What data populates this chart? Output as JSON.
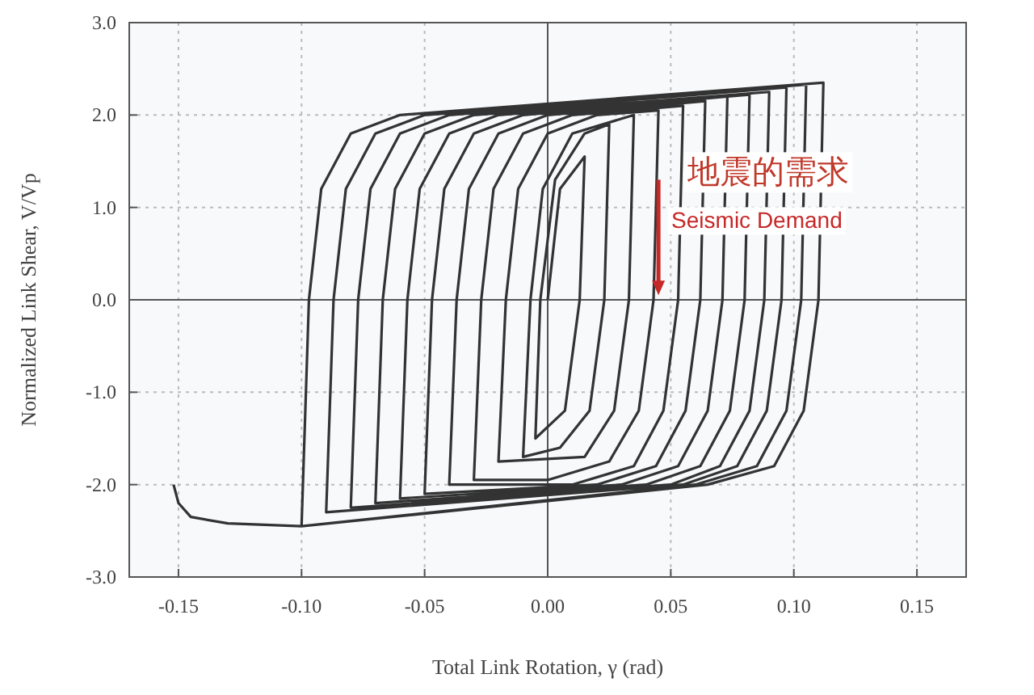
{
  "chart_data": {
    "type": "line",
    "xlabel": "Total Link Rotation, γ (rad)",
    "ylabel": "Normalized Link Shear, V/Vp",
    "xlim": [
      -0.17,
      0.17
    ],
    "xticks": [
      {
        "value": -0.15,
        "label": "-0.15"
      },
      {
        "value": -0.1,
        "label": "-0.10"
      },
      {
        "value": -0.05,
        "label": "-0.05"
      },
      {
        "value": 0,
        "label": "0.00"
      },
      {
        "value": 0.05,
        "label": "0.05"
      },
      {
        "value": 0.1,
        "label": "0.10"
      },
      {
        "value": 0.15,
        "label": "0.15"
      }
    ],
    "ylim": [
      -3,
      3
    ],
    "yticks": [
      {
        "value": -3,
        "label": "-3.0"
      },
      {
        "value": -2,
        "label": "-2.0"
      },
      {
        "value": -1,
        "label": "-1.0"
      },
      {
        "value": 0,
        "label": "0.0"
      },
      {
        "value": 1,
        "label": "1.0"
      },
      {
        "value": 2,
        "label": "2.0"
      },
      {
        "value": 3,
        "label": "3.0"
      }
    ],
    "grid": true,
    "marker": "none",
    "line_style": "solid",
    "annotations": [
      {
        "text": "地震的需求",
        "x": 0.045,
        "y": 1.3
      },
      {
        "text": "Seismic Demand",
        "x": 0.045,
        "y": 0.05
      }
    ],
    "series": [
      {
        "color": "#333333",
        "x": [
          0,
          0.005,
          0.015,
          0.013,
          0.007,
          -0.005,
          -0.003,
          0.003,
          0.015,
          0.025,
          0.023,
          0.017,
          0.005,
          -0.01,
          -0.007,
          -0.002,
          0.01,
          0.035,
          0.033,
          0.027,
          0.015,
          -0.02,
          -0.017,
          -0.012,
          0.0,
          0.02,
          0.045,
          0.043,
          0.037,
          0.025,
          0.0,
          -0.03,
          -0.027,
          -0.022,
          -0.01,
          0.01,
          0.055,
          0.053,
          0.047,
          0.035,
          0.01,
          -0.04,
          -0.037,
          -0.032,
          -0.02,
          0.0,
          0.064,
          0.062,
          0.056,
          0.044,
          0.02,
          -0.05,
          -0.047,
          -0.042,
          -0.03,
          -0.01,
          0.073,
          0.071,
          0.065,
          0.053,
          0.03,
          -0.06,
          -0.057,
          -0.052,
          -0.04,
          -0.02,
          0.082,
          0.08,
          0.074,
          0.062,
          0.04,
          -0.07,
          -0.067,
          -0.062,
          -0.05,
          -0.03,
          0.09,
          0.088,
          0.082,
          0.07,
          0.05,
          -0.08,
          -0.077,
          -0.072,
          -0.06,
          -0.04,
          0.097,
          0.095,
          0.089,
          0.077,
          0.055,
          -0.09,
          -0.087,
          -0.082,
          -0.07,
          -0.05,
          0.105,
          0.103,
          0.097,
          0.085,
          0.06,
          -0.1,
          -0.097,
          -0.092,
          -0.08,
          -0.06,
          0.112,
          0.11,
          0.104,
          0.092,
          0.065,
          -0.1,
          -0.13,
          -0.145,
          -0.15,
          -0.152
        ],
        "values": [
          0,
          1.2,
          1.55,
          0,
          -1.2,
          -1.5,
          0,
          1.3,
          1.8,
          1.9,
          0,
          -1.2,
          -1.6,
          -1.7,
          0,
          1.2,
          1.8,
          2.0,
          0,
          -1.2,
          -1.7,
          -1.75,
          0,
          1.2,
          1.8,
          2.0,
          2.05,
          0,
          -1.2,
          -1.75,
          -1.95,
          -1.95,
          0,
          1.2,
          1.8,
          2.0,
          2.1,
          0,
          -1.2,
          -1.8,
          -2.0,
          -2.0,
          0,
          1.2,
          1.8,
          2.0,
          2.15,
          0,
          -1.2,
          -1.8,
          -2.0,
          -2.1,
          0,
          1.2,
          1.8,
          2.0,
          2.2,
          0,
          -1.2,
          -1.8,
          -2.0,
          -2.15,
          0,
          1.2,
          1.8,
          2.0,
          2.22,
          0,
          -1.2,
          -1.8,
          -2.0,
          -2.2,
          0,
          1.2,
          1.8,
          2.0,
          2.25,
          0,
          -1.2,
          -1.8,
          -2.0,
          -2.25,
          0,
          1.2,
          1.8,
          2.0,
          2.3,
          0,
          -1.2,
          -1.8,
          -2.0,
          -2.3,
          0,
          1.2,
          1.8,
          2.0,
          2.33,
          0,
          -1.2,
          -1.8,
          -2.0,
          -2.45,
          0,
          1.2,
          1.8,
          2.0,
          2.35,
          0,
          -1.2,
          -1.8,
          -2.0,
          -2.45,
          -2.42,
          -2.35,
          -2.2,
          -2.0
        ]
      }
    ]
  }
}
